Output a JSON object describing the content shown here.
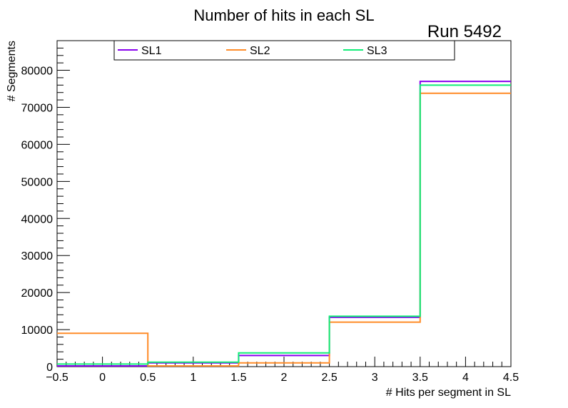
{
  "chart_data": {
    "type": "histogram-step",
    "title": "Number of hits in each SL",
    "run_label": "Run 5492",
    "xlabel": "# Hits per segment in SL",
    "ylabel": "# Segments",
    "xlim": [
      -0.5,
      4.5
    ],
    "ylim": [
      0,
      88000
    ],
    "x_ticks": [
      -0.5,
      0,
      0.5,
      1,
      1.5,
      2,
      2.5,
      3,
      3.5,
      4,
      4.5
    ],
    "x_tick_labels": [
      "−0.5",
      "0",
      "0.5",
      "1",
      "1.5",
      "2",
      "2.5",
      "3",
      "3.5",
      "4",
      "4.5"
    ],
    "y_ticks": [
      0,
      10000,
      20000,
      30000,
      40000,
      50000,
      60000,
      70000,
      80000
    ],
    "y_tick_labels": [
      "0",
      "10000",
      "20000",
      "30000",
      "40000",
      "50000",
      "60000",
      "70000",
      "80000"
    ],
    "bin_edges": [
      -0.5,
      0.5,
      1.5,
      2.5,
      3.5,
      4.5
    ],
    "legend_position": "top",
    "series": [
      {
        "name": "SL1",
        "color": "#8800ee",
        "values": [
          200,
          1000,
          3000,
          13300,
          77000
        ]
      },
      {
        "name": "SL2",
        "color": "#ff8c28",
        "values": [
          9000,
          200,
          1000,
          12000,
          73800
        ]
      },
      {
        "name": "SL3",
        "color": "#11ee77",
        "values": [
          700,
          1200,
          3700,
          13600,
          76000
        ]
      }
    ]
  }
}
